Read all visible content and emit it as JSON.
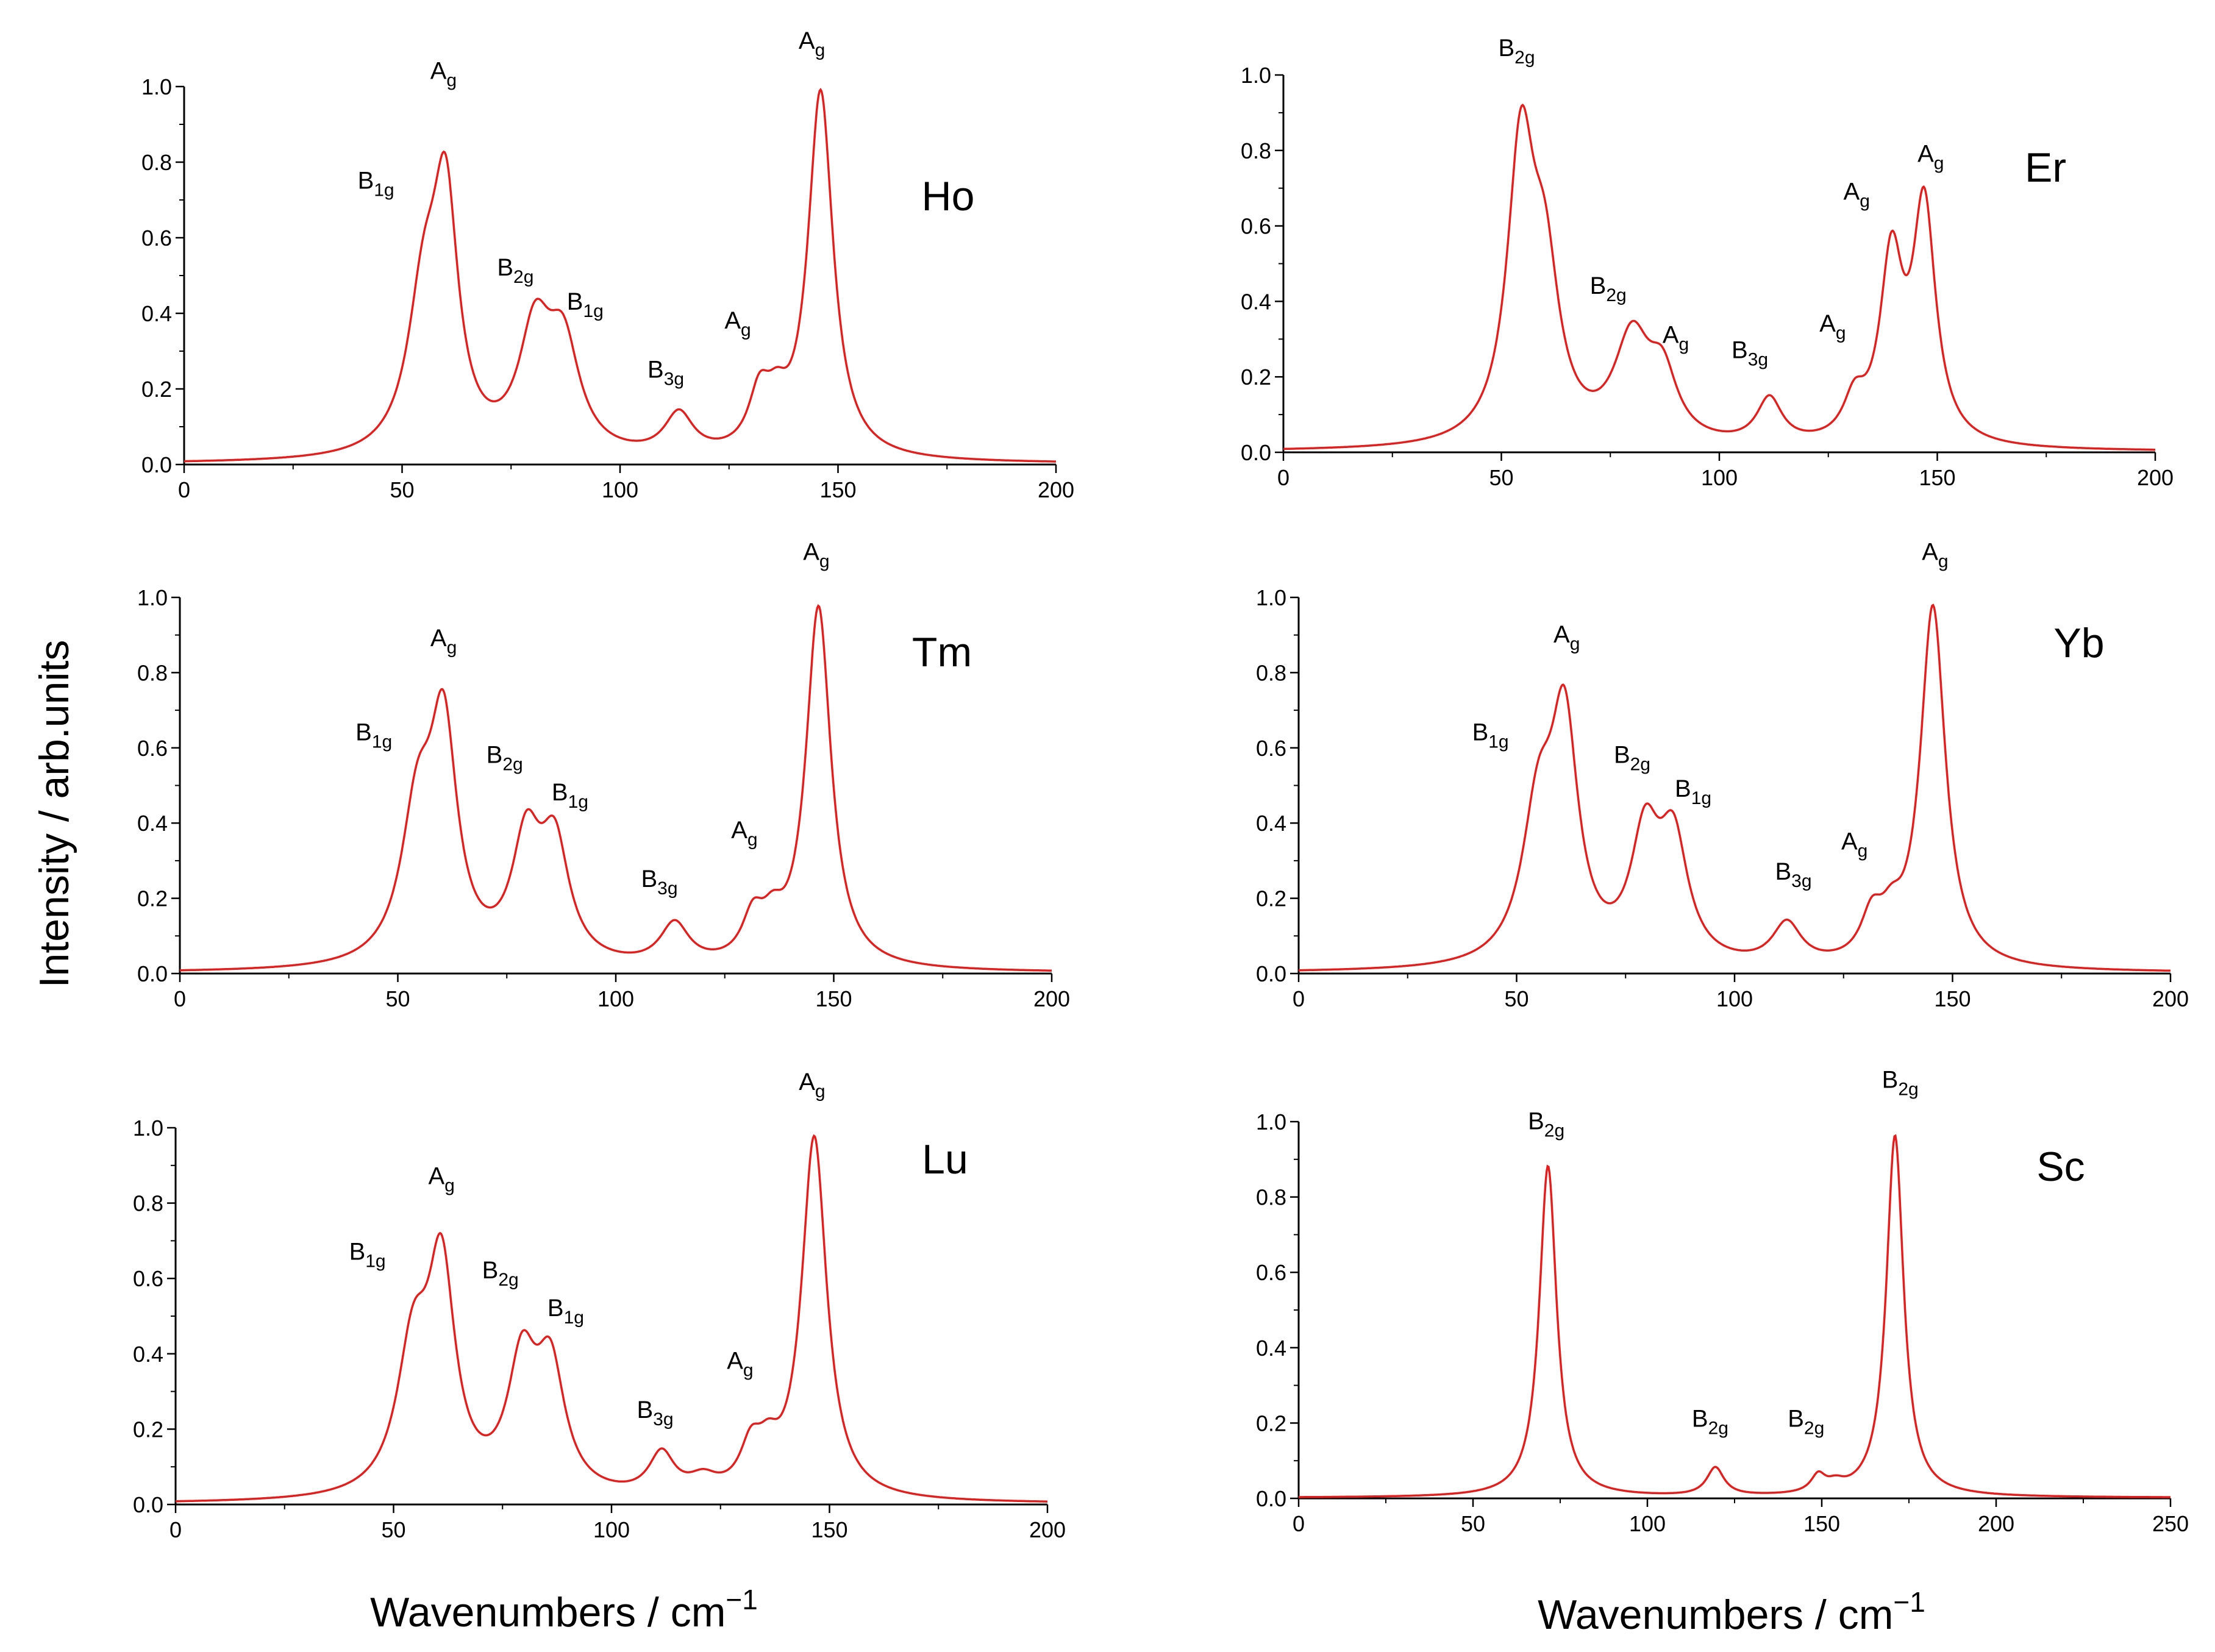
{
  "figure": {
    "ylabel": "Intensity / arb.units",
    "xlabel_left": "Wavenumbers / cm",
    "xlabel_right": "Wavenumbers / cm",
    "xlabel_superscript": "−1"
  },
  "colors": {
    "curve": "#e0201e",
    "axis": "#000000"
  },
  "chart_data": [
    {
      "type": "line",
      "title": "Ho",
      "xlim": [
        0,
        200
      ],
      "ylim": [
        0,
        1.0
      ],
      "xticks": [
        0,
        50,
        100,
        150,
        200
      ],
      "yticks": [
        0.0,
        0.2,
        0.4,
        0.6,
        0.8,
        1.0
      ],
      "ytick_labels": [
        "0.0",
        "0.2",
        "0.4",
        "0.6",
        "0.8",
        "1.0"
      ],
      "peaks": [
        {
          "pos": 55,
          "amp": 0.39,
          "w": 4.5
        },
        {
          "pos": 60,
          "amp": 0.62,
          "w": 3.5
        },
        {
          "pos": 80.5,
          "amp": 0.31,
          "w": 4.5
        },
        {
          "pos": 87,
          "amp": 0.27,
          "w": 4.5
        },
        {
          "pos": 113.5,
          "amp": 0.11,
          "w": 4
        },
        {
          "pos": 132,
          "amp": 0.14,
          "w": 3
        },
        {
          "pos": 136,
          "amp": 0.09,
          "w": 3
        },
        {
          "pos": 146,
          "amp": 0.97,
          "w": 3.5
        }
      ],
      "annotations": [
        {
          "label": "A",
          "sub": "g",
          "x": 59.5,
          "y": 1.02
        },
        {
          "label": "B",
          "sub": "1g",
          "x": 44,
          "y": 0.73
        },
        {
          "label": "B",
          "sub": "2g",
          "x": 76,
          "y": 0.5
        },
        {
          "label": "B",
          "sub": "1g",
          "x": 92,
          "y": 0.41
        },
        {
          "label": "B",
          "sub": "3g",
          "x": 110.5,
          "y": 0.23
        },
        {
          "label": "A",
          "sub": "g",
          "x": 127,
          "y": 0.36
        },
        {
          "label": "A",
          "sub": "g",
          "x": 144,
          "y": 1.1
        }
      ]
    },
    {
      "type": "line",
      "title": "Er",
      "xlim": [
        0,
        200
      ],
      "ylim": [
        0,
        1.0
      ],
      "xticks": [
        0,
        50,
        100,
        150,
        200
      ],
      "yticks": [
        0.0,
        0.2,
        0.4,
        0.6,
        0.8,
        1.0
      ],
      "ytick_labels": [
        "0.0",
        "0.2",
        "0.4",
        "0.6",
        "0.8",
        "1.0"
      ],
      "peaks": [
        {
          "pos": 54.5,
          "amp": 0.76,
          "w": 3.8
        },
        {
          "pos": 60,
          "amp": 0.4,
          "w": 4
        },
        {
          "pos": 80,
          "amp": 0.27,
          "w": 5
        },
        {
          "pos": 87,
          "amp": 0.16,
          "w": 4
        },
        {
          "pos": 111.5,
          "amp": 0.12,
          "w": 3.5
        },
        {
          "pos": 131,
          "amp": 0.1,
          "w": 3
        },
        {
          "pos": 139.5,
          "amp": 0.47,
          "w": 3.2
        },
        {
          "pos": 147,
          "amp": 0.62,
          "w": 3.2
        }
      ],
      "annotations": [
        {
          "label": "B",
          "sub": "2g",
          "x": 53.5,
          "y": 1.05
        },
        {
          "label": "B",
          "sub": "2g",
          "x": 74.5,
          "y": 0.42
        },
        {
          "label": "A",
          "sub": "g",
          "x": 90,
          "y": 0.29
        },
        {
          "label": "B",
          "sub": "3g",
          "x": 107,
          "y": 0.25
        },
        {
          "label": "A",
          "sub": "g",
          "x": 126,
          "y": 0.32
        },
        {
          "label": "A",
          "sub": "g",
          "x": 131.5,
          "y": 0.67
        },
        {
          "label": "A",
          "sub": "g",
          "x": 148.5,
          "y": 0.77
        }
      ]
    },
    {
      "type": "line",
      "title": "Tm",
      "xlim": [
        0,
        200
      ],
      "ylim": [
        0,
        1.0
      ],
      "xticks": [
        0,
        50,
        100,
        150,
        200
      ],
      "yticks": [
        0.0,
        0.2,
        0.4,
        0.6,
        0.8,
        1.0
      ],
      "ytick_labels": [
        "0.0",
        "0.2",
        "0.4",
        "0.6",
        "0.8",
        "1.0"
      ],
      "peaks": [
        {
          "pos": 54.5,
          "amp": 0.38,
          "w": 4.5
        },
        {
          "pos": 60.5,
          "amp": 0.59,
          "w": 3.8
        },
        {
          "pos": 79.5,
          "amp": 0.31,
          "w": 4
        },
        {
          "pos": 86,
          "amp": 0.3,
          "w": 4
        },
        {
          "pos": 113.5,
          "amp": 0.11,
          "w": 4
        },
        {
          "pos": 131.5,
          "amp": 0.11,
          "w": 3
        },
        {
          "pos": 136,
          "amp": 0.08,
          "w": 3
        },
        {
          "pos": 146.5,
          "amp": 0.96,
          "w": 3.5
        }
      ],
      "annotations": [
        {
          "label": "A",
          "sub": "g",
          "x": 60.5,
          "y": 0.87
        },
        {
          "label": "B",
          "sub": "1g",
          "x": 44.5,
          "y": 0.62
        },
        {
          "label": "B",
          "sub": "2g",
          "x": 74.5,
          "y": 0.56
        },
        {
          "label": "B",
          "sub": "1g",
          "x": 89.5,
          "y": 0.46
        },
        {
          "label": "B",
          "sub": "3g",
          "x": 110,
          "y": 0.23
        },
        {
          "label": "A",
          "sub": "g",
          "x": 129.5,
          "y": 0.36
        },
        {
          "label": "A",
          "sub": "g",
          "x": 146,
          "y": 1.1
        }
      ]
    },
    {
      "type": "line",
      "title": "Yb",
      "xlim": [
        0,
        200
      ],
      "ylim": [
        0,
        1.0
      ],
      "xticks": [
        0,
        50,
        100,
        150,
        200
      ],
      "yticks": [
        0.0,
        0.2,
        0.4,
        0.6,
        0.8,
        1.0
      ],
      "ytick_labels": [
        "0.0",
        "0.2",
        "0.4",
        "0.6",
        "0.8",
        "1.0"
      ],
      "peaks": [
        {
          "pos": 55,
          "amp": 0.38,
          "w": 4.5
        },
        {
          "pos": 61,
          "amp": 0.6,
          "w": 3.8
        },
        {
          "pos": 79.5,
          "amp": 0.32,
          "w": 4
        },
        {
          "pos": 86,
          "amp": 0.31,
          "w": 4
        },
        {
          "pos": 112,
          "amp": 0.11,
          "w": 4
        },
        {
          "pos": 131.5,
          "amp": 0.11,
          "w": 3
        },
        {
          "pos": 136,
          "amp": 0.08,
          "w": 3
        },
        {
          "pos": 145.5,
          "amp": 0.96,
          "w": 3.5
        }
      ],
      "annotations": [
        {
          "label": "A",
          "sub": "g",
          "x": 61.5,
          "y": 0.88
        },
        {
          "label": "B",
          "sub": "1g",
          "x": 44,
          "y": 0.62
        },
        {
          "label": "B",
          "sub": "2g",
          "x": 76.5,
          "y": 0.56
        },
        {
          "label": "B",
          "sub": "1g",
          "x": 90.5,
          "y": 0.47
        },
        {
          "label": "B",
          "sub": "3g",
          "x": 113.5,
          "y": 0.25
        },
        {
          "label": "A",
          "sub": "g",
          "x": 127.5,
          "y": 0.33
        },
        {
          "label": "A",
          "sub": "g",
          "x": 146,
          "y": 1.1
        }
      ]
    },
    {
      "type": "line",
      "title": "Lu",
      "xlim": [
        0,
        200
      ],
      "ylim": [
        0,
        1.0
      ],
      "xticks": [
        0,
        50,
        100,
        150,
        200
      ],
      "yticks": [
        0.0,
        0.2,
        0.4,
        0.6,
        0.8,
        1.0
      ],
      "ytick_labels": [
        "0.0",
        "0.2",
        "0.4",
        "0.6",
        "0.8",
        "1.0"
      ],
      "peaks": [
        {
          "pos": 54.5,
          "amp": 0.37,
          "w": 4.5
        },
        {
          "pos": 61,
          "amp": 0.57,
          "w": 3.8
        },
        {
          "pos": 79.5,
          "amp": 0.33,
          "w": 4
        },
        {
          "pos": 86,
          "amp": 0.32,
          "w": 4
        },
        {
          "pos": 111.5,
          "amp": 0.11,
          "w": 3.5
        },
        {
          "pos": 121,
          "amp": 0.04,
          "w": 4
        },
        {
          "pos": 132,
          "amp": 0.11,
          "w": 3
        },
        {
          "pos": 136,
          "amp": 0.08,
          "w": 3
        },
        {
          "pos": 146.5,
          "amp": 0.96,
          "w": 3.5
        }
      ],
      "annotations": [
        {
          "label": "A",
          "sub": "g",
          "x": 61,
          "y": 0.85
        },
        {
          "label": "B",
          "sub": "1g",
          "x": 44,
          "y": 0.65
        },
        {
          "label": "B",
          "sub": "2g",
          "x": 74.5,
          "y": 0.6
        },
        {
          "label": "B",
          "sub": "1g",
          "x": 89.5,
          "y": 0.5
        },
        {
          "label": "B",
          "sub": "3g",
          "x": 110,
          "y": 0.23
        },
        {
          "label": "A",
          "sub": "g",
          "x": 129.5,
          "y": 0.36
        },
        {
          "label": "A",
          "sub": "g",
          "x": 146,
          "y": 1.1
        }
      ]
    },
    {
      "type": "line",
      "title": "Sc",
      "xlim": [
        0,
        250
      ],
      "ylim": [
        0,
        1.0
      ],
      "xticks": [
        0,
        50,
        100,
        150,
        200,
        250
      ],
      "yticks": [
        0.0,
        0.2,
        0.4,
        0.6,
        0.8,
        1.0
      ],
      "ytick_labels": [
        "0.0",
        "0.2",
        "0.4",
        "0.6",
        "0.8",
        "1.0"
      ],
      "peaks": [
        {
          "pos": 71.5,
          "amp": 0.88,
          "w": 3
        },
        {
          "pos": 119.5,
          "amp": 0.075,
          "w": 3
        },
        {
          "pos": 149,
          "amp": 0.045,
          "w": 2.5
        },
        {
          "pos": 154,
          "amp": 0.02,
          "w": 3
        },
        {
          "pos": 171,
          "amp": 0.96,
          "w": 3
        }
      ],
      "annotations": [
        {
          "label": "B",
          "sub": "2g",
          "x": 71,
          "y": 0.98
        },
        {
          "label": "B",
          "sub": "2g",
          "x": 118,
          "y": 0.19
        },
        {
          "label": "B",
          "sub": "2g",
          "x": 145.5,
          "y": 0.19
        },
        {
          "label": "B",
          "sub": "2g",
          "x": 172.5,
          "y": 1.09
        }
      ]
    }
  ]
}
